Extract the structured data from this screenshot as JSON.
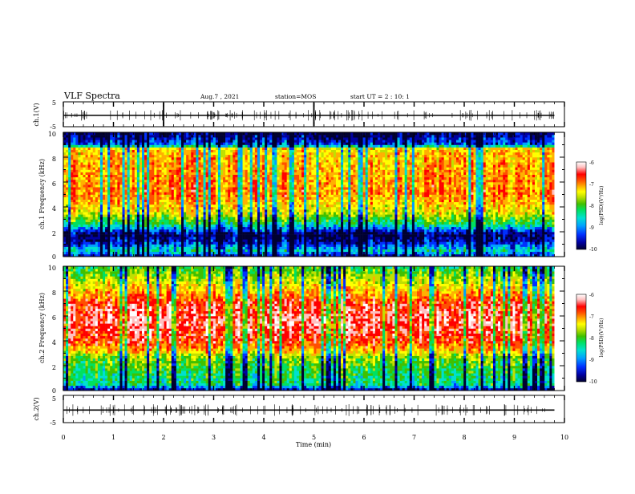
{
  "header": {
    "title": "VLF Spectra",
    "date": "Aug.7 , 2021",
    "station": "station=MOS",
    "start_ut": "start UT = 2 : 10: 1"
  },
  "colors": {
    "scale": [
      "#000030",
      "#0000a0",
      "#0030ff",
      "#00a0ff",
      "#00e0d0",
      "#00e060",
      "#40c000",
      "#c0e000",
      "#ffff00",
      "#ffb000",
      "#ff5000",
      "#ff0000",
      "#ffc0c0",
      "#ffffff"
    ],
    "frame": "#000000"
  },
  "chart_data": {
    "type": "heatmap",
    "title": "VLF Spectra",
    "xlabel": "Time (min)",
    "xlim": [
      0,
      10
    ],
    "x_ticks": [
      "0",
      "1",
      "2",
      "3",
      "4",
      "5",
      "6",
      "7",
      "8",
      "9",
      "10"
    ],
    "panels": [
      {
        "id": "ch1-waveform",
        "ylabel": "ch.1(V)",
        "ylim": [
          -5,
          5
        ],
        "y_ticks": [
          "5",
          "-5"
        ],
        "baseline": -0.4,
        "end_min": 9.8
      },
      {
        "id": "ch1-spectrogram",
        "ylabel": "ch.1 Frequency (kHz)",
        "ylim": [
          0,
          10
        ],
        "y_ticks": [
          "10",
          "8",
          "6",
          "4",
          "2",
          "0"
        ],
        "band_profile": [
          [
            0,
            -9.6
          ],
          [
            0.5,
            -8.8
          ],
          [
            1.2,
            -9.6
          ],
          [
            1.8,
            -9.9
          ],
          [
            2.6,
            -8.6
          ],
          [
            3.5,
            -7.8
          ],
          [
            5,
            -7.2
          ],
          [
            6.5,
            -7.3
          ],
          [
            8,
            -7.4
          ],
          [
            8.7,
            -7.6
          ],
          [
            9.0,
            -9.3
          ],
          [
            10,
            -9.9
          ]
        ],
        "end_min": 9.8
      },
      {
        "id": "ch2-spectrogram",
        "ylabel": "ch.2 Frequency (kHz)",
        "ylim": [
          0,
          10
        ],
        "y_ticks": [
          "10",
          "8",
          "6",
          "4",
          "2",
          "0"
        ],
        "band_profile": [
          [
            0,
            -9.8
          ],
          [
            0.5,
            -8.6
          ],
          [
            1.5,
            -8.4
          ],
          [
            2.8,
            -8.0
          ],
          [
            3.2,
            -7.4
          ],
          [
            4,
            -6.9
          ],
          [
            5.5,
            -6.6
          ],
          [
            7,
            -6.8
          ],
          [
            8,
            -7.4
          ],
          [
            9,
            -7.9
          ],
          [
            10,
            -8.4
          ]
        ],
        "end_min": 9.8
      },
      {
        "id": "ch2-waveform",
        "ylabel": "ch.2(V)",
        "ylim": [
          -5,
          5
        ],
        "y_ticks": [
          "5",
          "-5"
        ],
        "baseline": -0.4,
        "end_min": 9.8
      }
    ],
    "colorbars": [
      {
        "label": "log(PSD)(V²/Hz)",
        "range": [
          -10,
          -6
        ],
        "ticks": [
          "-6",
          "-7",
          "-8",
          "-9",
          "-10"
        ]
      },
      {
        "label": "log(PSD)(V²/Hz)",
        "range": [
          -10,
          -6
        ],
        "ticks": [
          "-6",
          "-7",
          "-8",
          "-9",
          "-10"
        ]
      }
    ],
    "annotations": {
      "ch1_waveform_spikes_min": [
        2.0,
        5.0
      ]
    }
  }
}
